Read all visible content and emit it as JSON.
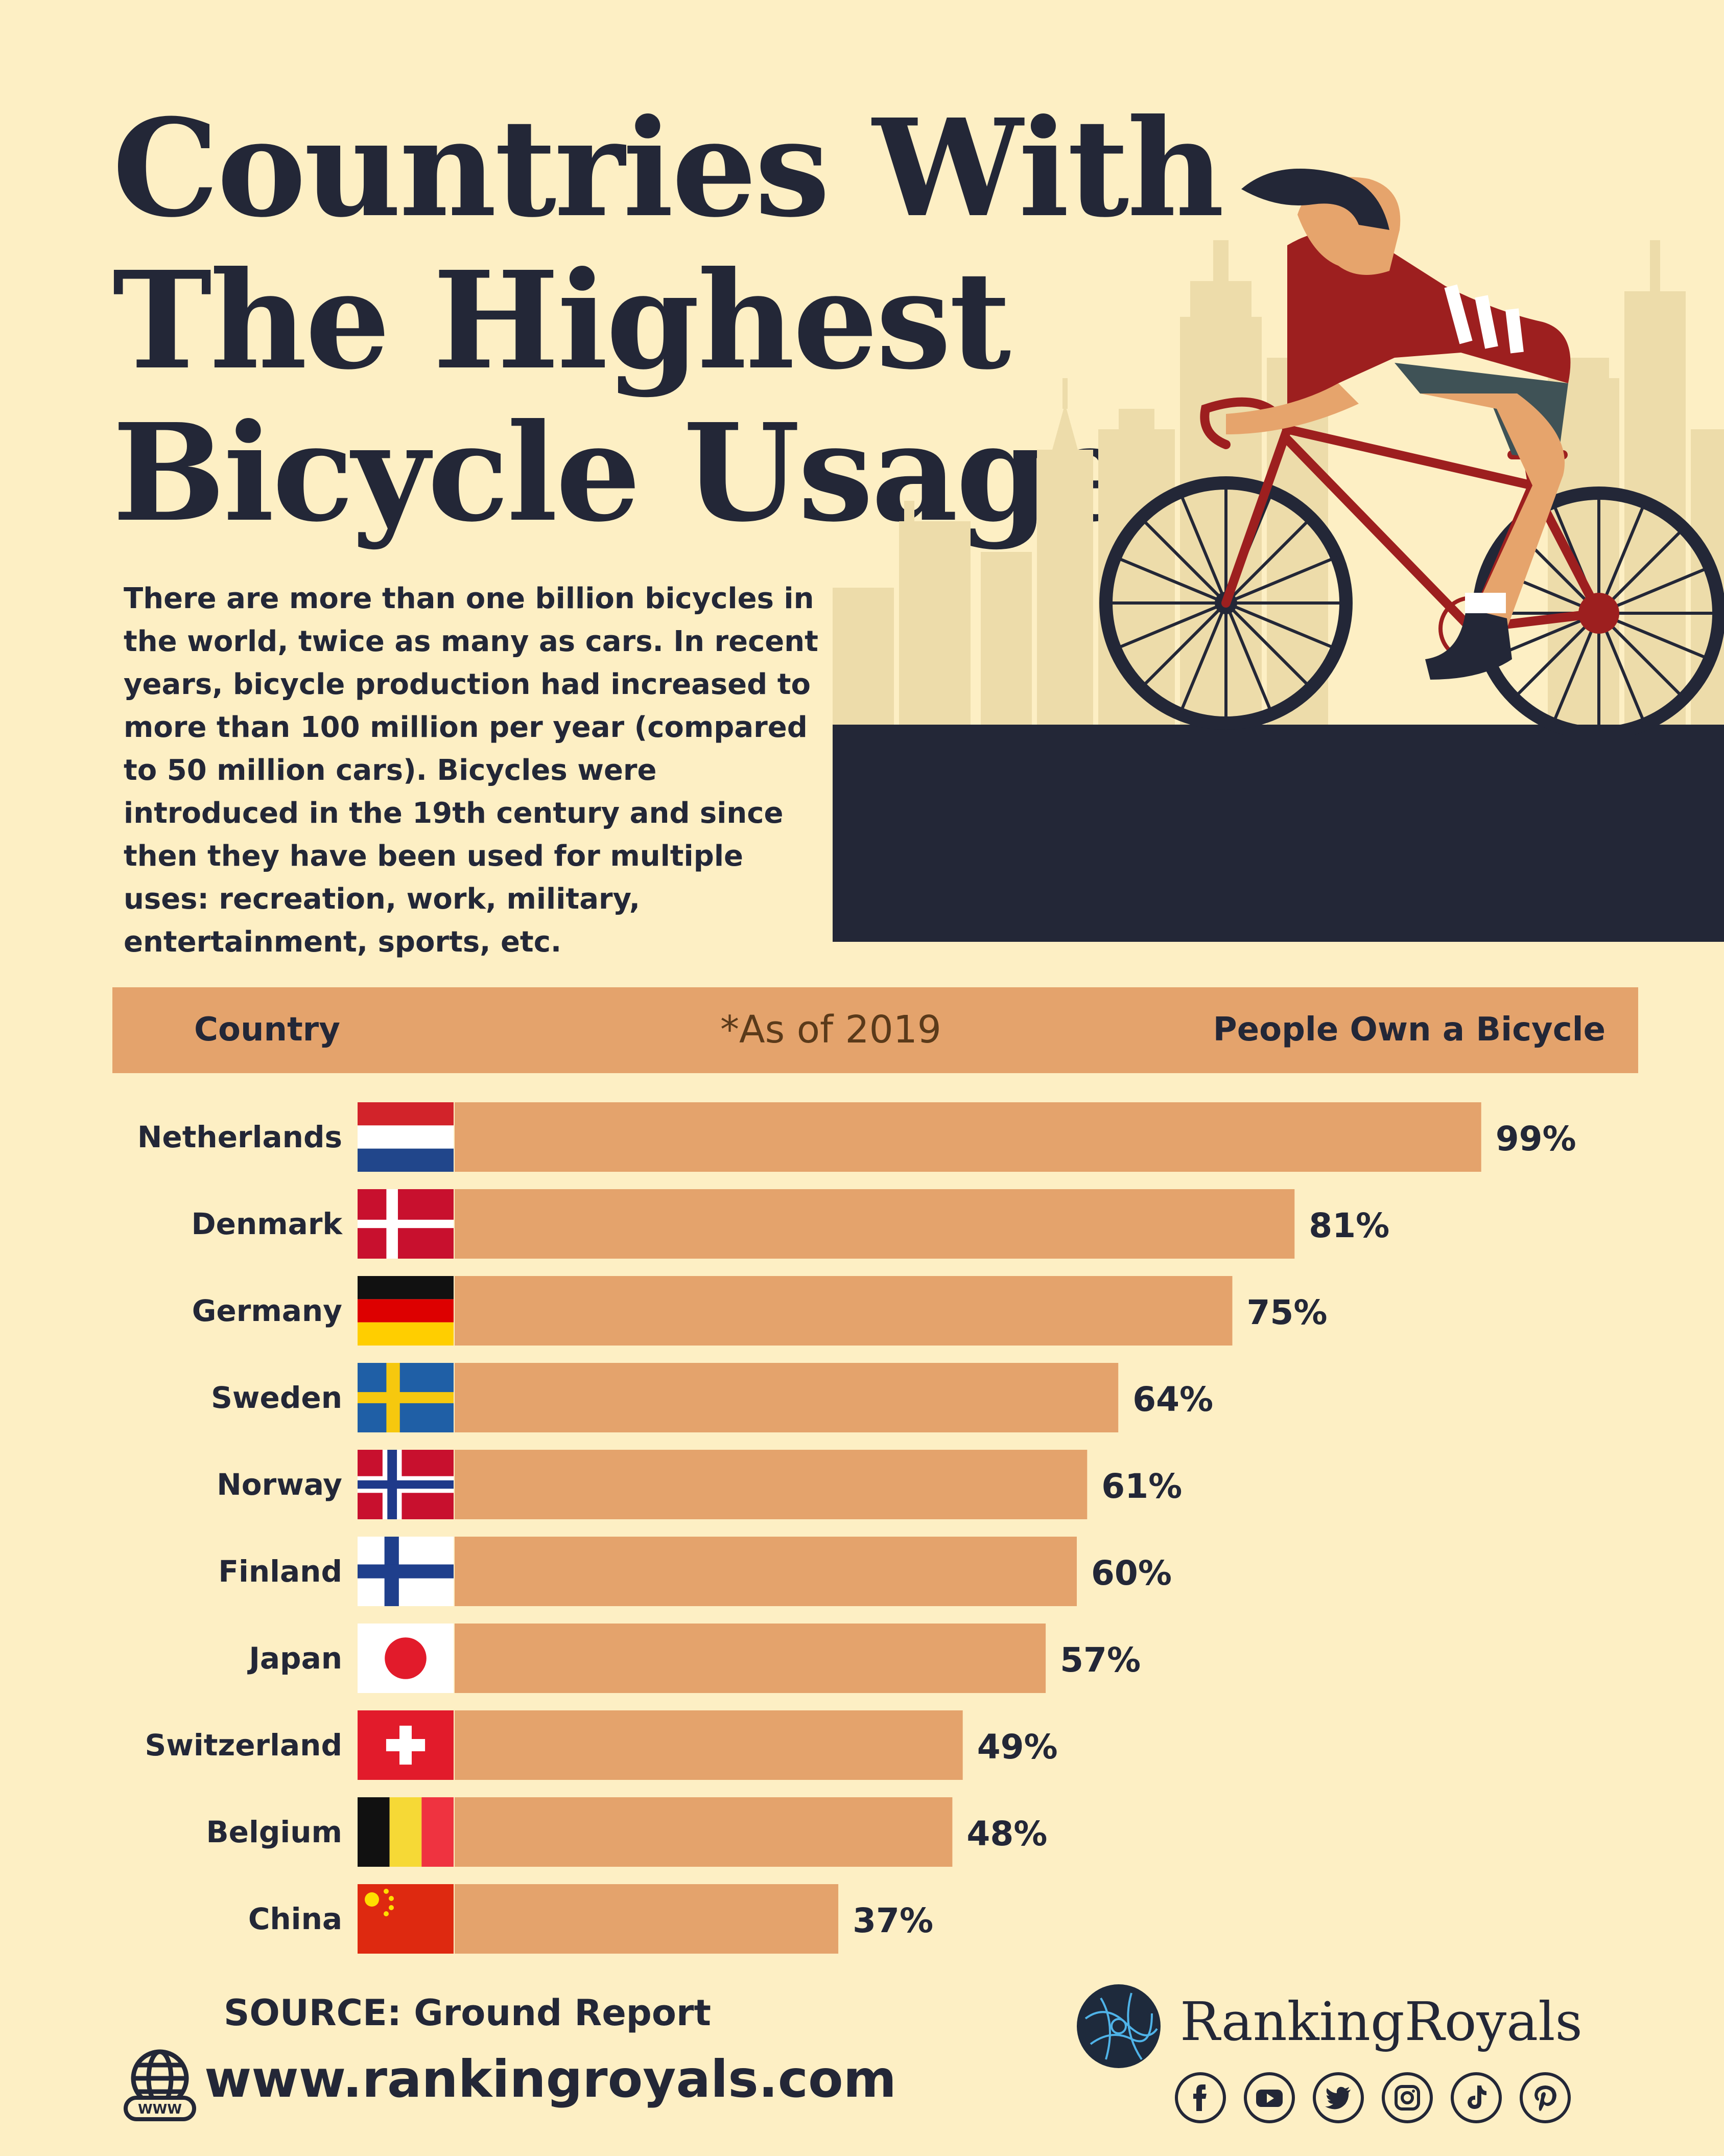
{
  "header": {
    "title_lines": [
      "Countries With",
      "The Highest",
      "Bicycle Usage"
    ],
    "intro": "There are more than one billion bicycles in the world, twice as many as cars. In recent years, bicycle production had increased to more than 100 million per year (compared to 50 million cars). Bicycles were introduced in the 19th century and since then they have been used for multiple uses: recreation, work, military, entertainment, sports, etc."
  },
  "table_header": {
    "country": "Country",
    "note": "*As of 2019",
    "value": "People Own a Bicycle"
  },
  "chart_data": {
    "type": "bar",
    "orientation": "horizontal",
    "categories": [
      "Netherlands",
      "Denmark",
      "Germany",
      "Sweden",
      "Norway",
      "Finland",
      "Japan",
      "Switzerland",
      "Belgium",
      "China"
    ],
    "values": [
      99,
      81,
      75,
      64,
      61,
      60,
      57,
      49,
      48,
      37
    ],
    "value_labels": [
      "99%",
      "81%",
      "75%",
      "64%",
      "61%",
      "60%",
      "57%",
      "49%",
      "48%",
      "37%"
    ],
    "xlim": [
      0,
      100
    ],
    "bar_color": "#e4a36c",
    "grid": false
  },
  "flag_icons": [
    "netherlands-flag-icon",
    "denmark-flag-icon",
    "germany-flag-icon",
    "sweden-flag-icon",
    "norway-flag-icon",
    "finland-flag-icon",
    "japan-flag-icon",
    "switzerland-flag-icon",
    "belgium-flag-icon",
    "china-flag-icon"
  ],
  "footer": {
    "source": "SOURCE: Ground Report",
    "url": "www.rankingroyals.com",
    "globe_label": "WWW",
    "brand": "RankingRoyals",
    "social_icons": [
      "facebook-icon",
      "youtube-icon",
      "twitter-icon",
      "instagram-icon",
      "tiktok-icon",
      "pinterest-icon"
    ]
  },
  "colors": {
    "background": "#fdefc4",
    "ink": "#232737",
    "bar": "#e4a36c",
    "skyline": "#eddcaa",
    "jersey": "#9d1f1f"
  }
}
